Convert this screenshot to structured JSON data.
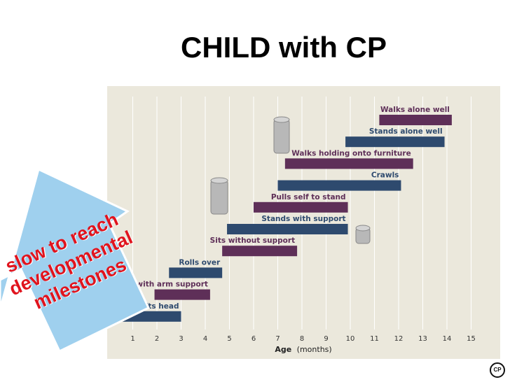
{
  "slide": {
    "title": "CHILD with CP",
    "callout_lines": [
      "slow to reach",
      "developmental",
      "milestones"
    ],
    "logo_text": "CP"
  },
  "colors": {
    "panel": "#ebe8dc",
    "grid": "#ffffff",
    "bar_dark_blue": "#2e4a6e",
    "bar_dark_purple": "#5e2f58",
    "label_blue": "#2e4a6e",
    "label_purple": "#5e2f58",
    "callout_fill": "#9fd0ee",
    "callout_text": "#e0141e"
  },
  "chart_data": {
    "type": "bar",
    "orientation": "horizontal-range",
    "title": "",
    "xlabel": "Age",
    "xlabel_unit": "(months)",
    "xlim": [
      0,
      15.5
    ],
    "xticks": [
      1,
      2,
      3,
      4,
      5,
      6,
      7,
      8,
      9,
      10,
      11,
      12,
      13,
      14,
      15
    ],
    "grid": "vertical",
    "milestones": [
      {
        "label": "Walks alone well",
        "start": 11.2,
        "end": 14.2,
        "color": "purple"
      },
      {
        "label": "Stands alone well",
        "start": 9.8,
        "end": 13.9,
        "color": "blue"
      },
      {
        "label": "Walks holding onto furniture",
        "start": 7.3,
        "end": 12.6,
        "color": "purple"
      },
      {
        "label": "Crawls",
        "start": 7.0,
        "end": 12.1,
        "color": "blue"
      },
      {
        "label": "Pulls self to stand",
        "start": 6.0,
        "end": 9.9,
        "color": "purple"
      },
      {
        "label": "Stands with support",
        "start": 4.9,
        "end": 9.9,
        "color": "blue"
      },
      {
        "label": "Sits without support",
        "start": 4.7,
        "end": 7.8,
        "color": "purple"
      },
      {
        "label": "Rolls over",
        "start": 2.5,
        "end": 4.7,
        "color": "blue"
      },
      {
        "label": "Prone, lifts chest with arm support",
        "start": 1.9,
        "end": 4.2,
        "color": "purple"
      },
      {
        "label": "Prone, lifts head",
        "start": 0.4,
        "end": 3.0,
        "color": "blue"
      }
    ]
  }
}
